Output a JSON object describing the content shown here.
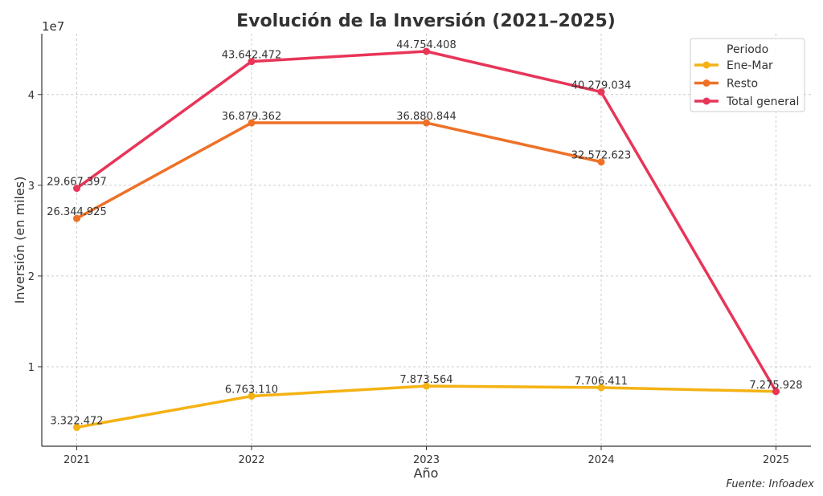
{
  "chart_data": {
    "type": "line",
    "title": "Evolución de la Inversión (2021–2025)",
    "xlabel": "Año",
    "ylabel": "Inversión (en miles)",
    "y_offset_label": "1e7",
    "x": [
      2021,
      2022,
      2023,
      2024,
      2025
    ],
    "x_tick_labels": [
      "2021",
      "2022",
      "2023",
      "2024",
      "2025"
    ],
    "y_ticks": [
      10000000,
      20000000,
      30000000,
      40000000
    ],
    "y_tick_labels": [
      "1",
      "2",
      "3",
      "4"
    ],
    "xlim": [
      2020.8,
      2025.2
    ],
    "ylim": [
      1240000,
      46700000
    ],
    "grid": true,
    "legend": {
      "title": "Periodo",
      "placement": "top-right"
    },
    "series": [
      {
        "name": "Ene-Mar",
        "color": "#F4B213",
        "values": [
          3322472,
          6763110,
          7873564,
          7706411,
          7275928
        ],
        "labels": [
          "3.322.472",
          "6.763.110",
          "7.873.564",
          "7.706.411",
          "7.275.928"
        ]
      },
      {
        "name": "Resto",
        "color": "#EE7127",
        "values": [
          26344925,
          36879362,
          36880844,
          32572623,
          null
        ],
        "labels": [
          "26.344.925",
          "36.879.362",
          "36.880.844",
          "32.572.623",
          null
        ]
      },
      {
        "name": "Total general",
        "color": "#E83558",
        "values": [
          29667397,
          43642472,
          44754408,
          40279034,
          7275928
        ],
        "labels": [
          "29.667.397",
          "43.642.472",
          "44.754.408",
          "40.279.034",
          null
        ]
      }
    ]
  },
  "source": "Fuente: Infoadex"
}
